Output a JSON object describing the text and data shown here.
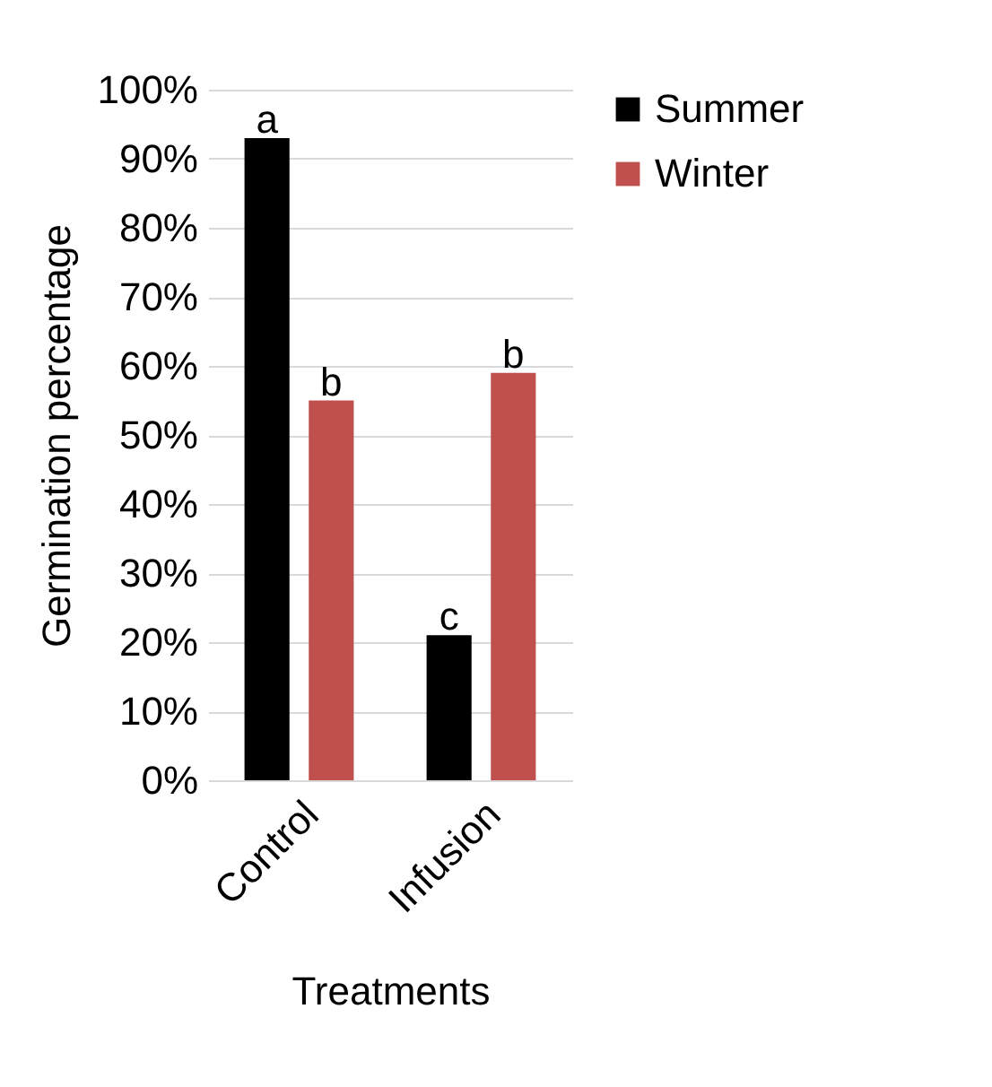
{
  "chart_data": {
    "type": "bar",
    "xlabel": "Treatments",
    "ylabel": "Germination percentage",
    "categories": [
      "Control",
      "Infusion"
    ],
    "series": [
      {
        "name": "Summer",
        "color": "#000000",
        "values": [
          93,
          21
        ],
        "value_labels": [
          "a",
          "c"
        ]
      },
      {
        "name": "Winter",
        "color": "#c0504d",
        "values": [
          55,
          59
        ],
        "value_labels": [
          "b",
          "b"
        ]
      }
    ],
    "ylim": [
      0,
      100
    ],
    "yticks": [
      {
        "value": 0,
        "label": "0%"
      },
      {
        "value": 10,
        "label": "10%"
      },
      {
        "value": 20,
        "label": "20%"
      },
      {
        "value": 30,
        "label": "30%"
      },
      {
        "value": 40,
        "label": "40%"
      },
      {
        "value": 50,
        "label": "50%"
      },
      {
        "value": 60,
        "label": "60%"
      },
      {
        "value": 70,
        "label": "70%"
      },
      {
        "value": 80,
        "label": "80%"
      },
      {
        "value": 90,
        "label": "90%"
      },
      {
        "value": 100,
        "label": "100%"
      }
    ],
    "grid": "y",
    "legend": "right"
  }
}
